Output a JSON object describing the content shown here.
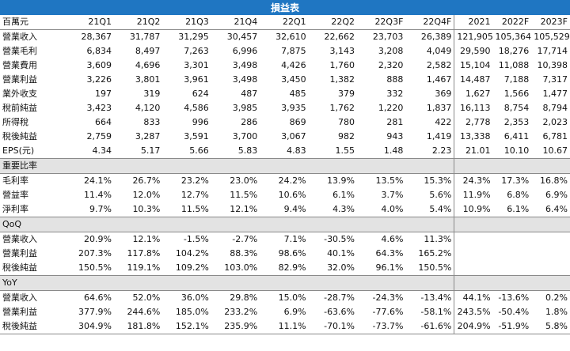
{
  "title": "損益表",
  "header": [
    "百萬元",
    "21Q1",
    "21Q2",
    "21Q3",
    "21Q4",
    "22Q1",
    "22Q2",
    "22Q3F",
    "22Q4F",
    "2021",
    "2022F",
    "2023F"
  ],
  "income_rows": [
    {
      "label": "營業收入",
      "values": [
        "28,367",
        "31,787",
        "31,295",
        "30,457",
        "32,610",
        "22,662",
        "23,703",
        "26,389",
        "121,905",
        "105,364",
        "105,529"
      ]
    },
    {
      "label": "營業毛利",
      "values": [
        "6,834",
        "8,497",
        "7,263",
        "6,996",
        "7,875",
        "3,143",
        "3,208",
        "4,049",
        "29,590",
        "18,276",
        "17,714"
      ]
    },
    {
      "label": "營業費用",
      "values": [
        "3,609",
        "4,696",
        "3,301",
        "3,498",
        "4,426",
        "1,760",
        "2,320",
        "2,582",
        "15,104",
        "11,088",
        "10,398"
      ]
    },
    {
      "label": "營業利益",
      "values": [
        "3,226",
        "3,801",
        "3,961",
        "3,498",
        "3,450",
        "1,382",
        "888",
        "1,467",
        "14,487",
        "7,188",
        "7,317"
      ]
    },
    {
      "label": "業外收支",
      "values": [
        "197",
        "319",
        "624",
        "487",
        "485",
        "379",
        "332",
        "369",
        "1,627",
        "1,566",
        "1,477"
      ]
    },
    {
      "label": "稅前純益",
      "values": [
        "3,423",
        "4,120",
        "4,586",
        "3,985",
        "3,935",
        "1,762",
        "1,220",
        "1,837",
        "16,113",
        "8,754",
        "8,794"
      ]
    },
    {
      "label": "所得稅",
      "values": [
        "664",
        "833",
        "996",
        "286",
        "869",
        "780",
        "281",
        "422",
        "2,778",
        "2,353",
        "2,023"
      ]
    },
    {
      "label": "稅後純益",
      "values": [
        "2,759",
        "3,287",
        "3,591",
        "3,700",
        "3,067",
        "982",
        "943",
        "1,419",
        "13,338",
        "6,411",
        "6,781"
      ]
    },
    {
      "label": "EPS(元)",
      "values": [
        "4.34",
        "5.17",
        "5.66",
        "5.83",
        "4.83",
        "1.55",
        "1.48",
        "2.23",
        "21.01",
        "10.10",
        "10.67"
      ]
    }
  ],
  "ratios": {
    "heading": "重要比率",
    "rows": [
      {
        "label": "毛利率",
        "values": [
          "24.1%",
          "26.7%",
          "23.2%",
          "23.0%",
          "24.2%",
          "13.9%",
          "13.5%",
          "15.3%",
          "24.3%",
          "17.3%",
          "16.8%"
        ]
      },
      {
        "label": "營益率",
        "values": [
          "11.4%",
          "12.0%",
          "12.7%",
          "11.5%",
          "10.6%",
          "6.1%",
          "3.7%",
          "5.6%",
          "11.9%",
          "6.8%",
          "6.9%"
        ]
      },
      {
        "label": "淨利率",
        "values": [
          "9.7%",
          "10.3%",
          "11.5%",
          "12.1%",
          "9.4%",
          "4.3%",
          "4.0%",
          "5.4%",
          "10.9%",
          "6.1%",
          "6.4%"
        ]
      }
    ]
  },
  "qoq": {
    "heading": "QoQ",
    "rows": [
      {
        "label": "營業收入",
        "values": [
          "20.9%",
          "12.1%",
          "-1.5%",
          "-2.7%",
          "7.1%",
          "-30.5%",
          "4.6%",
          "11.3%",
          "",
          "",
          ""
        ]
      },
      {
        "label": "營業利益",
        "values": [
          "207.3%",
          "117.8%",
          "104.2%",
          "88.3%",
          "98.6%",
          "40.1%",
          "64.3%",
          "165.2%",
          "",
          "",
          ""
        ]
      },
      {
        "label": "稅後純益",
        "values": [
          "150.5%",
          "119.1%",
          "109.2%",
          "103.0%",
          "82.9%",
          "32.0%",
          "96.1%",
          "150.5%",
          "",
          "",
          ""
        ]
      }
    ]
  },
  "yoy": {
    "heading": "YoY",
    "rows": [
      {
        "label": "營業收入",
        "values": [
          "64.6%",
          "52.0%",
          "36.0%",
          "29.8%",
          "15.0%",
          "-28.7%",
          "-24.3%",
          "-13.4%",
          "44.1%",
          "-13.6%",
          "0.2%"
        ]
      },
      {
        "label": "營業利益",
        "values": [
          "377.9%",
          "244.6%",
          "185.0%",
          "233.2%",
          "6.9%",
          "-63.6%",
          "-77.6%",
          "-58.1%",
          "243.5%",
          "-50.4%",
          "1.8%"
        ]
      },
      {
        "label": "稅後純益",
        "values": [
          "304.9%",
          "181.8%",
          "152.1%",
          "235.9%",
          "11.1%",
          "-70.1%",
          "-73.7%",
          "-61.6%",
          "204.9%",
          "-51.9%",
          "5.8%"
        ]
      }
    ]
  },
  "colors": {
    "title_bg": "#1f76c2",
    "section_bg": "#e3e3e3",
    "grid": "#8a8a8a"
  }
}
